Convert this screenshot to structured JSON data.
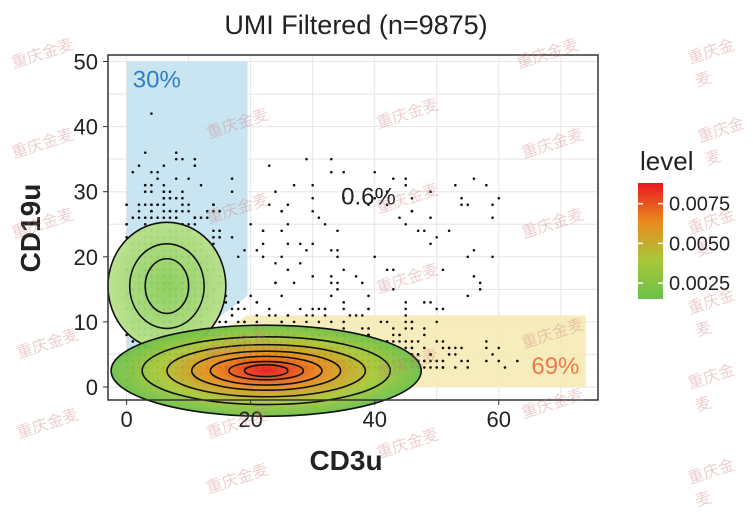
{
  "chart_data": {
    "type": "scatter",
    "title": "UMI Filtered (n=9875)",
    "xlabel": "CD3u",
    "ylabel": "CD19u",
    "xlim": [
      -3,
      76
    ],
    "ylim": [
      -2,
      51
    ],
    "xticks": [
      0,
      20,
      40,
      60
    ],
    "yticks": [
      0,
      10,
      20,
      30,
      40,
      50
    ],
    "grid": true,
    "gates": [
      {
        "label": "30%",
        "color": "#2f7fc1",
        "fill": "#bfe0f0",
        "polygon": [
          [
            0,
            0
          ],
          [
            0,
            50
          ],
          [
            19.5,
            50
          ],
          [
            19.5,
            14
          ],
          [
            0,
            0
          ]
        ]
      },
      {
        "label": "69%",
        "color": "#f07a4a",
        "fill": "#f6eab0",
        "polygon": [
          [
            0,
            0
          ],
          [
            19.5,
            11
          ],
          [
            74,
            11
          ],
          [
            74,
            0
          ]
        ]
      }
    ],
    "annotations": [
      {
        "text": "0.6%",
        "x": 39,
        "y": 28,
        "color": "#222222"
      }
    ],
    "clusters": [
      {
        "cx": 6.5,
        "cy": 15.5,
        "contours": [
          [
            3.5,
            4.2
          ],
          [
            6.0,
            6.5
          ],
          [
            9.5,
            9.8
          ]
        ],
        "core_level": 0.004
      },
      {
        "cx": 22.5,
        "cy": 2.5,
        "contours": [
          [
            3.5,
            0.9
          ],
          [
            6,
            1.4
          ],
          [
            9,
            2.2
          ],
          [
            12,
            3.0
          ],
          [
            16,
            4.0
          ],
          [
            20,
            5.2
          ],
          [
            25,
            7.0
          ]
        ],
        "core_level": 0.009
      }
    ],
    "legend": {
      "title": "level",
      "position": "right",
      "ticks": [
        "0.0075",
        "0.0050",
        "0.0025"
      ],
      "tick_values": [
        0.0075,
        0.005,
        0.0025
      ],
      "range": [
        0.0015,
        0.0088
      ],
      "colors": [
        "#e8181e",
        "#e88a1e",
        "#a8c83a",
        "#6cc04a"
      ]
    }
  },
  "watermark": "重庆金麦"
}
